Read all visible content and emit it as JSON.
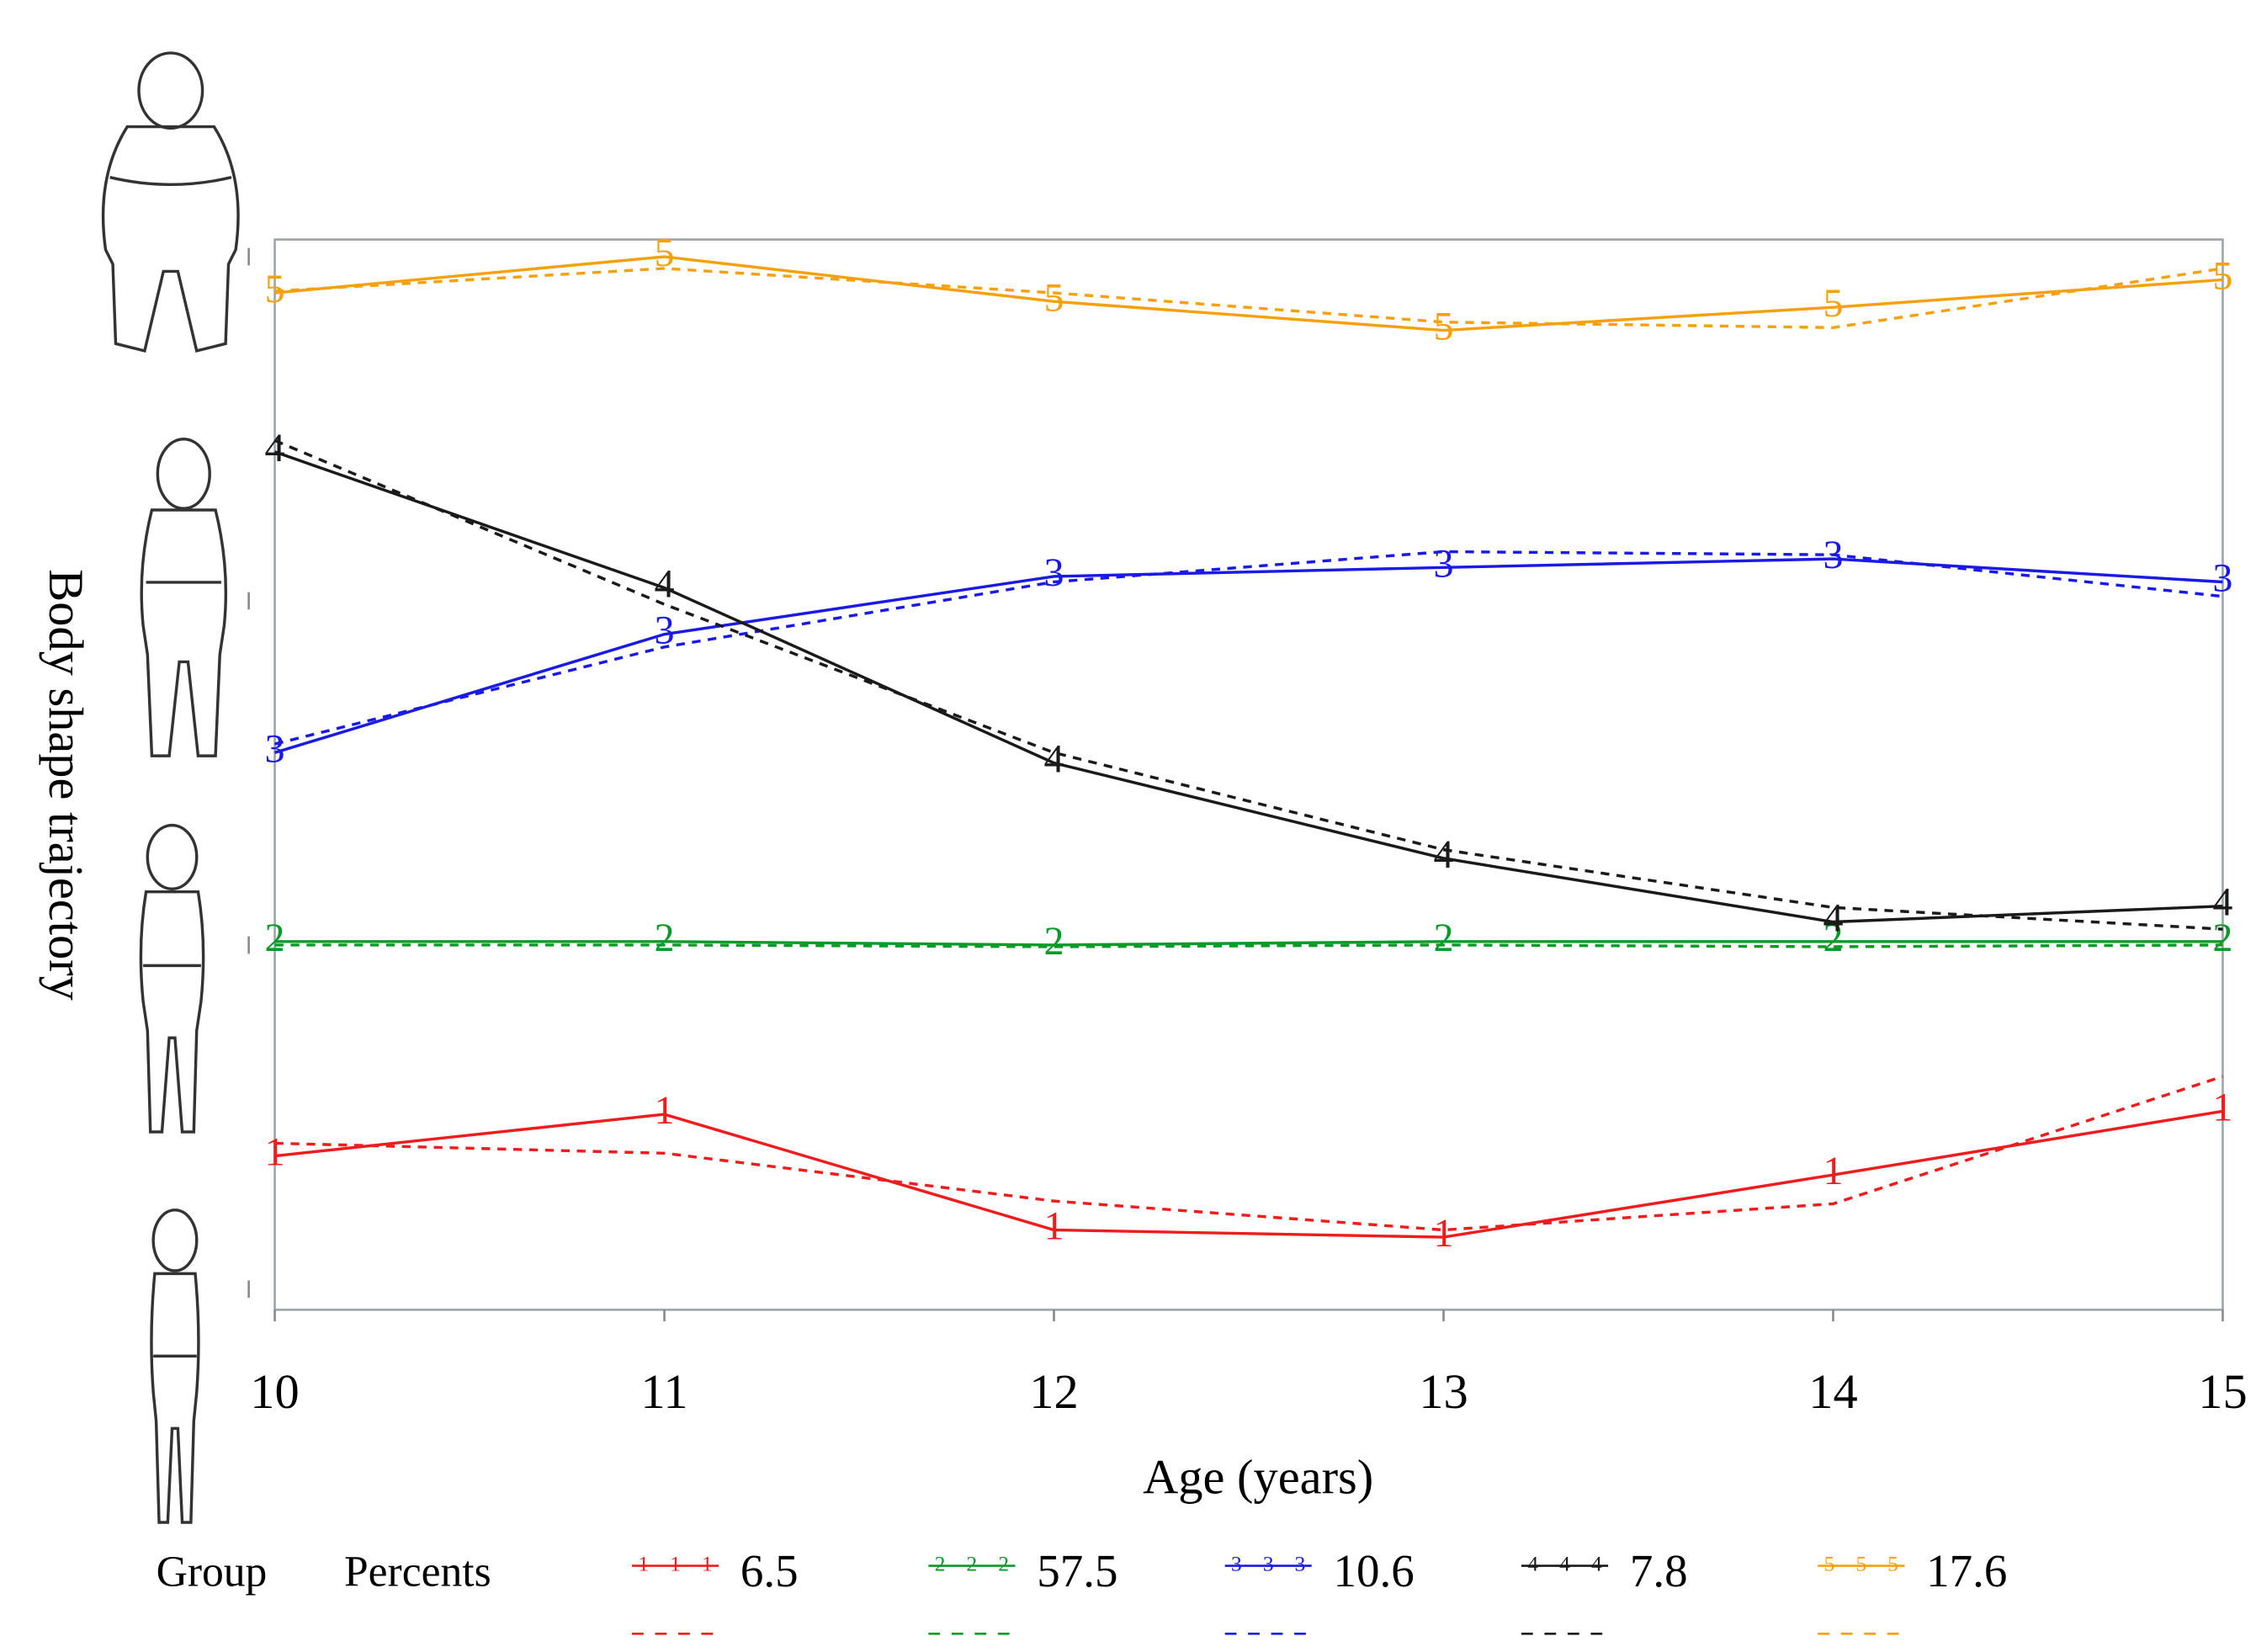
{
  "chart_data": {
    "type": "line",
    "x_label": "Age (years)",
    "y_label": "Body shape trajectory",
    "x": [
      10,
      11,
      12,
      13,
      14,
      15
    ],
    "xlim": [
      10,
      15
    ],
    "xticks": [
      10,
      11,
      12,
      13,
      14,
      15
    ],
    "ylim": [
      0.94,
      4.05
    ],
    "yticks": [
      1,
      2,
      3,
      4
    ],
    "legend_title": [
      "Group",
      "Percents"
    ],
    "series": [
      {
        "name": "6.5",
        "marker": "1",
        "color": "#ee1c1c",
        "values": [
          1.387,
          1.508,
          1.172,
          1.151,
          1.332,
          1.517
        ],
        "fitted": [
          1.424,
          1.395,
          1.256,
          1.172,
          1.248,
          1.618
        ]
      },
      {
        "name": "57.5",
        "marker": "2",
        "color": "#0a9a2a",
        "values": [
          2.01,
          2.01,
          2.0,
          2.01,
          2.01,
          2.01
        ],
        "fitted": [
          2.0,
          2.0,
          1.995,
          2.0,
          1.995,
          2.0
        ]
      },
      {
        "name": "10.6",
        "marker": "3",
        "color": "#1a1ae6",
        "values": [
          2.559,
          2.903,
          3.071,
          3.097,
          3.122,
          3.055
        ],
        "fitted": [
          2.584,
          2.866,
          3.055,
          3.143,
          3.134,
          3.013
        ]
      },
      {
        "name": "7.8",
        "marker": "4",
        "color": "#1a1a1a",
        "values": [
          3.433,
          3.038,
          2.529,
          2.252,
          2.067,
          2.113
        ],
        "fitted": [
          3.466,
          2.99,
          2.559,
          2.277,
          2.109,
          2.046
        ]
      },
      {
        "name": "17.6",
        "marker": "5",
        "color": "#f5a10f",
        "values": [
          3.895,
          4.0,
          3.87,
          3.786,
          3.853,
          3.933
        ],
        "fitted": [
          3.9,
          3.966,
          3.895,
          3.81,
          3.794,
          3.966
        ]
      }
    ]
  }
}
